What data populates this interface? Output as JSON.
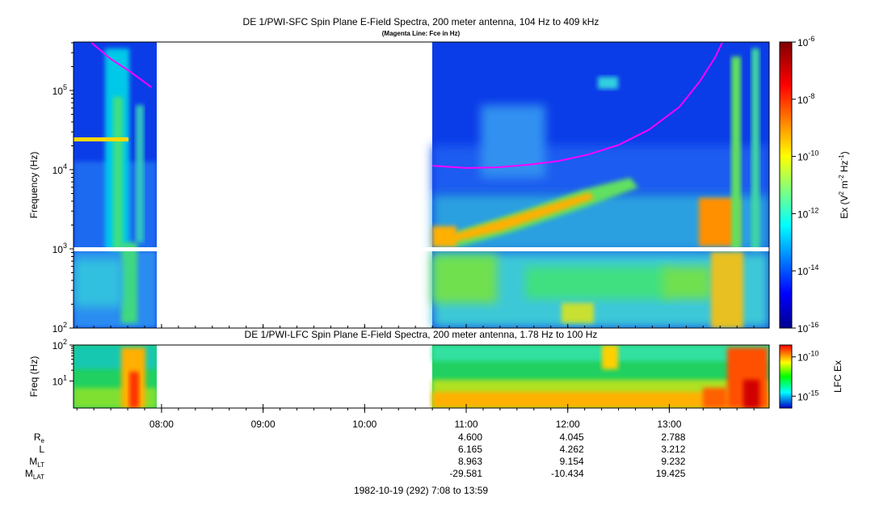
{
  "chart_data": [
    {
      "type": "heatmap",
      "title": "DE 1/PWI-SFC  Spin Plane E-Field Spectra, 200 meter antenna, 104 Hz to 409 kHz",
      "subtitle": "(Magenta Line: Fce in Hz)",
      "ylabel": "Frequency (Hz)",
      "yscale": "log",
      "ylim": [
        100,
        409000
      ],
      "yticks": [
        {
          "value": 100,
          "base": "10",
          "exp": "2"
        },
        {
          "value": 1000,
          "base": "10",
          "exp": "3"
        },
        {
          "value": 10000,
          "base": "10",
          "exp": "4"
        },
        {
          "value": 100000,
          "base": "10",
          "exp": "5"
        }
      ],
      "xlim_hours": [
        7.1333,
        13.9833
      ],
      "data_gap_hours": [
        7.93,
        10.67
      ],
      "colorbar": {
        "label": "Ex (V² m⁻² Hz⁻¹)",
        "label_parts": {
          "a": "Ex (V",
          "sup1": "2",
          "b": " m",
          "sup2": "-2",
          "c": " Hz",
          "sup3": "-1",
          "d": ")"
        },
        "scale": "log",
        "range": [
          1e-16,
          1e-06
        ],
        "ticks": [
          {
            "base": "10",
            "exp": "-6",
            "value": -6
          },
          {
            "base": "10",
            "exp": "-8",
            "value": -8
          },
          {
            "base": "10",
            "exp": "-10",
            "value": -10
          },
          {
            "base": "10",
            "exp": "-12",
            "value": -12
          },
          {
            "base": "10",
            "exp": "-14",
            "value": -14
          },
          {
            "base": "10",
            "exp": "-16",
            "value": -16
          }
        ]
      },
      "series": [
        {
          "name": "Fce",
          "color": "#ff00ff",
          "segments": [
            [
              [
                7.31,
                400000
              ],
              [
                7.5,
                250000
              ],
              [
                7.7,
                170000
              ],
              [
                7.9,
                110000
              ]
            ],
            [
              [
                10.67,
                11200
              ],
              [
                11.0,
                10500
              ],
              [
                11.3,
                10700
              ],
              [
                11.6,
                11500
              ],
              [
                11.9,
                12800
              ],
              [
                12.2,
                15500
              ],
              [
                12.5,
                20500
              ],
              [
                12.8,
                32000
              ],
              [
                13.1,
                62000
              ],
              [
                13.3,
                130000
              ],
              [
                13.45,
                260000
              ],
              [
                13.52,
                400000
              ]
            ]
          ]
        }
      ]
    },
    {
      "type": "heatmap",
      "title": "DE 1/PWI-LFC  Spin Plane E-Field Spectra, 200 meter antenna, 1.78 Hz to 100 Hz",
      "ylabel": "Freq (Hz)",
      "yscale": "log",
      "ylim": [
        1.78,
        100
      ],
      "yticks": [
        {
          "value": 10,
          "base": "10",
          "exp": "1"
        },
        {
          "value": 100,
          "base": "10",
          "exp": "2"
        }
      ],
      "colorbar": {
        "label": "LFC Ex",
        "ticks": [
          {
            "base": "10",
            "exp": "-10",
            "value": -10
          },
          {
            "base": "10",
            "exp": "-15",
            "value": -15
          }
        ]
      }
    }
  ],
  "time_axis": {
    "ticks": [
      {
        "label": "08:00",
        "hour": 8
      },
      {
        "label": "09:00",
        "hour": 9
      },
      {
        "label": "10:00",
        "hour": 10
      },
      {
        "label": "11:00",
        "hour": 11
      },
      {
        "label": "12:00",
        "hour": 12
      },
      {
        "label": "13:00",
        "hour": 13
      }
    ],
    "caption": "1982-10-19 (292) 7:08 to 13:59"
  },
  "ephemeris": {
    "rows": [
      {
        "name": "R",
        "sub": "e",
        "values": [
          "4.600",
          "4.045",
          "2.788"
        ]
      },
      {
        "name": "L",
        "sub": "",
        "values": [
          "6.165",
          "4.262",
          "3.212"
        ]
      },
      {
        "name": "M",
        "sub": "LT",
        "values": [
          "8.963",
          "9.154",
          "9.232"
        ]
      },
      {
        "name": "M",
        "sub": "LAT",
        "values": [
          "-29.581",
          "-10.434",
          "19.425"
        ]
      }
    ]
  }
}
